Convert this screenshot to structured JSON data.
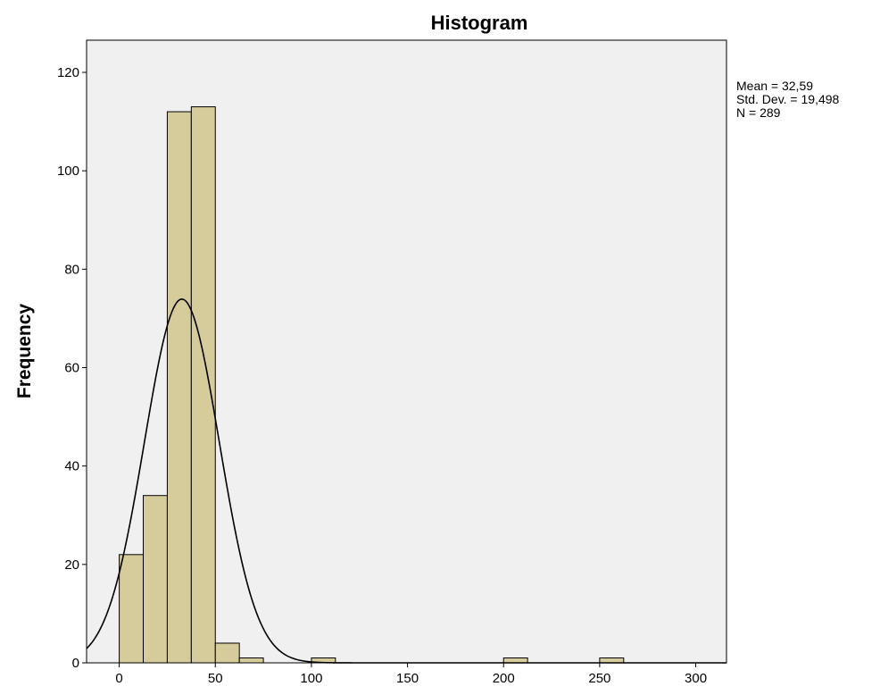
{
  "chart_data": {
    "type": "bar",
    "subtype": "histogram",
    "title": "Histogram",
    "xlabel": "",
    "ylabel": "Frequency",
    "xlim": [
      -17,
      316
    ],
    "ylim": [
      0,
      120
    ],
    "bin_width": 12.5,
    "bins": [
      {
        "start": 0,
        "end": 12.5,
        "count": 22
      },
      {
        "start": 12.5,
        "end": 25,
        "count": 34
      },
      {
        "start": 25,
        "end": 37.5,
        "count": 112
      },
      {
        "start": 37.5,
        "end": 50,
        "count": 113
      },
      {
        "start": 50,
        "end": 62.5,
        "count": 4
      },
      {
        "start": 62.5,
        "end": 75,
        "count": 1
      },
      {
        "start": 100,
        "end": 112.5,
        "count": 1
      },
      {
        "start": 200,
        "end": 212.5,
        "count": 1
      },
      {
        "start": 250,
        "end": 262.5,
        "count": 1
      }
    ],
    "normal_curve": {
      "mean": 32.59,
      "sd": 19.498,
      "n": 289
    },
    "x_ticks": [
      "0",
      "50",
      "100",
      "150",
      "200",
      "250",
      "300"
    ],
    "y_ticks": [
      "0",
      "20",
      "40",
      "60",
      "80",
      "100",
      "120"
    ],
    "stats": {
      "mean": "Mean = 32,59",
      "sd": "Std. Dev. = 19,498",
      "n": "N = 289"
    },
    "grid": false,
    "colors": {
      "bar_fill": "#d6cc9b",
      "bar_stroke": "#000000",
      "plot_background": "#f0f0f0",
      "curve": "#000000"
    }
  }
}
